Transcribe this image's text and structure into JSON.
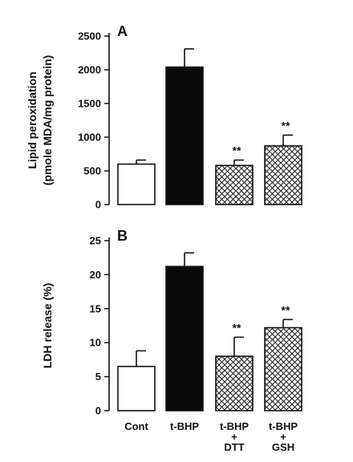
{
  "chart_data": [
    {
      "type": "bar",
      "panel_label": "A",
      "ylabel": [
        "Lipid peroxidation",
        "(pmole MDA/mg protein)"
      ],
      "ylim": [
        0,
        2500
      ],
      "yticks": [
        0,
        500,
        1000,
        1500,
        2000,
        2500
      ],
      "categories": [
        "Cont",
        "t-BHP",
        "t-BHP + DTT",
        "t-BHP + GSH"
      ],
      "values": [
        600,
        2040,
        580,
        870
      ],
      "errors": [
        60,
        270,
        80,
        160
      ],
      "significance": [
        "",
        "",
        "**",
        "**"
      ],
      "fills": [
        "white",
        "black",
        "crosshatch",
        "crosshatch"
      ]
    },
    {
      "type": "bar",
      "panel_label": "B",
      "ylabel": [
        "LDH release (%)"
      ],
      "ylim": [
        0,
        25
      ],
      "yticks": [
        0,
        5,
        10,
        15,
        20,
        25
      ],
      "categories": [
        "Cont",
        "t-BHP",
        "t-BHP + DTT",
        "t-BHP + GSH"
      ],
      "category_lines": [
        [
          "Cont"
        ],
        [
          "t-BHP"
        ],
        [
          "t-BHP",
          "+",
          "DTT"
        ],
        [
          "t-BHP",
          "+",
          "GSH"
        ]
      ],
      "values": [
        6.5,
        21.2,
        8.0,
        12.2
      ],
      "errors": [
        2.3,
        2.0,
        2.8,
        1.2
      ],
      "significance": [
        "",
        "",
        "**",
        "**"
      ],
      "fills": [
        "white",
        "black",
        "crosshatch",
        "crosshatch"
      ]
    }
  ]
}
